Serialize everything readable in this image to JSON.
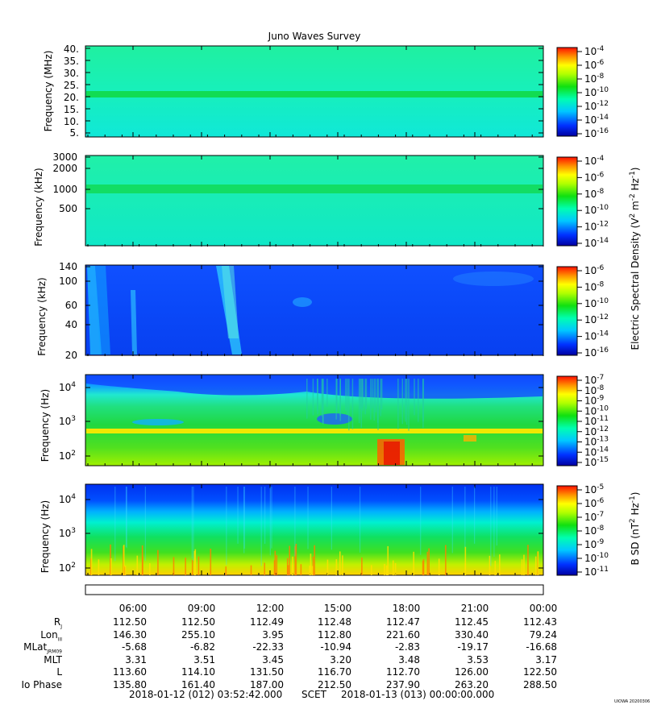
{
  "chart_data": {
    "type": "heatmap",
    "title": "Juno Waves Survey",
    "time_axis": {
      "tick_labels": [
        "06:00",
        "09:00",
        "12:00",
        "15:00",
        "18:00",
        "21:00",
        "00:00"
      ],
      "range": [
        "2018-01-12 03:52:42",
        "2018-01-13 00:00:00"
      ]
    },
    "panels": [
      {
        "ylabel": "Frequency (MHz)",
        "yscale": "linear",
        "ylim": [
          3.5,
          40.5
        ],
        "yticks": [
          "40.",
          "35.",
          "30.",
          "25.",
          "20.",
          "15.",
          "10.",
          "5."
        ],
        "colorbar": {
          "ticks": [
            "10^-4",
            "10^-6",
            "10^-8",
            "10^-10",
            "10^-12",
            "10^-14",
            "10^-16"
          ]
        },
        "features": [
          {
            "type": "band",
            "y": 21.5,
            "level": "green"
          }
        ]
      },
      {
        "ylabel": "Frequency (kHz)",
        "yscale": "log",
        "ylim": [
          150,
          3000
        ],
        "yticks": [
          "3000",
          "2000",
          "1000",
          "500"
        ],
        "colorbar": {
          "ticks": [
            "10^-4",
            "10^-6",
            "10^-8",
            "10^-10",
            "10^-12",
            "10^-14"
          ]
        },
        "features": [
          {
            "type": "band",
            "y": 1000,
            "level": "green"
          }
        ]
      },
      {
        "ylabel": "Frequency (kHz)",
        "yscale": "linear",
        "ylim": [
          20,
          140
        ],
        "yticks": [
          "140",
          "100",
          "60",
          "40",
          "20"
        ],
        "colorbar": {
          "ticks": [
            "10^-6",
            "10^-8",
            "10^-10",
            "10^-12",
            "10^-14",
            "10^-16"
          ]
        }
      },
      {
        "ylabel": "Frequency (Hz)",
        "yscale": "log",
        "ylim": [
          50,
          20000
        ],
        "yticks": [
          "10^4",
          "10^3",
          "10^2"
        ],
        "colorbar": {
          "ticks": [
            "10^-7",
            "10^-8",
            "10^-9",
            "10^-10",
            "10^-11",
            "10^-12",
            "10^-13",
            "10^-14",
            "10^-15"
          ]
        },
        "features": [
          {
            "type": "band",
            "y": 560,
            "level": "yellow"
          },
          {
            "type": "burst",
            "x": "18:00",
            "level": "red"
          }
        ]
      },
      {
        "ylabel": "Frequency (Hz)",
        "yscale": "log",
        "ylim": [
          50,
          20000
        ],
        "yticks": [
          "10^4",
          "10^3",
          "10^2"
        ],
        "colorbar": {
          "ticks": [
            "10^-5",
            "10^-6",
            "10^-7",
            "10^-8",
            "10^-9",
            "10^-10",
            "10^-11"
          ]
        }
      }
    ],
    "colorbar_labels": {
      "electric": {
        "text": "Electric Spectral Density (V",
        "sup1": "2",
        "mid": " m",
        "sup2": "-2",
        "mid2": " Hz",
        "sup3": "-1",
        "end": ")"
      },
      "magnetic": {
        "text": "B SD (nT",
        "sup1": "2",
        "mid": " Hz",
        "sup2": "-1",
        "end": ")"
      }
    },
    "ephemeris": {
      "rows": [
        {
          "label": "R",
          "sub": "J",
          "values": [
            "112.50",
            "112.50",
            "112.49",
            "112.48",
            "112.47",
            "112.45",
            "112.43"
          ]
        },
        {
          "label": "Lon",
          "sub": "III",
          "values": [
            "146.30",
            "255.10",
            "3.95",
            "112.80",
            "221.60",
            "330.40",
            "79.24"
          ]
        },
        {
          "label": "MLat",
          "sub": "JRM09",
          "values": [
            "-5.68",
            "-6.82",
            "-22.33",
            "-10.94",
            "-2.83",
            "-19.17",
            "-16.68"
          ]
        },
        {
          "label": "MLT",
          "sub": "",
          "values": [
            "3.31",
            "3.51",
            "3.45",
            "3.20",
            "3.48",
            "3.53",
            "3.17"
          ]
        },
        {
          "label": "L",
          "sub": "",
          "values": [
            "113.60",
            "114.10",
            "131.50",
            "116.70",
            "112.70",
            "126.00",
            "122.50"
          ]
        },
        {
          "label": "Io Phase",
          "sub": "",
          "values": [
            "135.80",
            "161.40",
            "187.00",
            "212.50",
            "237.90",
            "263.20",
            "288.50"
          ]
        }
      ]
    }
  },
  "footer": {
    "start": "2018-01-12 (012) 03:52:42.000",
    "scet": "SCET",
    "end": "2018-01-13 (013) 00:00:00.000"
  },
  "stamp": "UIOWA 20200306"
}
